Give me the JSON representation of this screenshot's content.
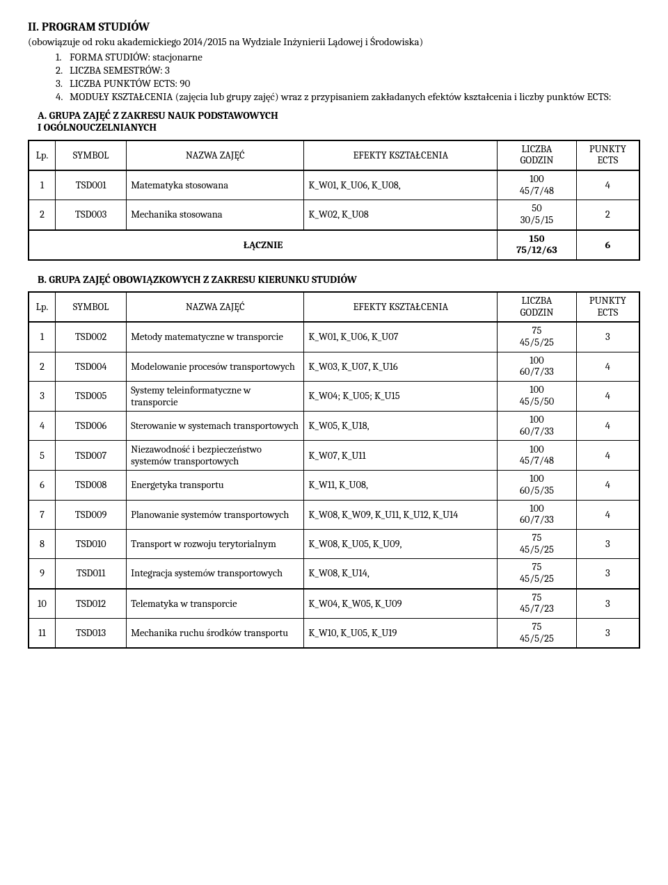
{
  "header": {
    "title": "II. PROGRAM STUDIÓW",
    "intro": "(obowiązuje od roku akademickiego 2014/2015 na Wydziale Inżynierii Lądowej i Środowiska)",
    "items": [
      "FORMA STUDIÓW: stacjonarne",
      "LICZBA SEMESTRÓW: 3",
      "LICZBA PUNKTÓW ECTS: 90",
      "MODUŁY KSZTAŁCENIA (zajęcia lub grupy zajęć) wraz z przypisaniem zakładanych efektów kształcenia i liczby punktów ECTS:"
    ]
  },
  "sectionA": {
    "heading": "A. GRUPA ZAJĘĆ  Z ZAKRESU NAUK PODSTAWOWYCH\n     I OGÓLNOUCZELNIANYCH",
    "columns": [
      "Lp.",
      "SYMBOL",
      "NAZWA ZAJĘĆ",
      "EFEKTY KSZTAŁCENIA",
      "LICZBA\nGODZIN",
      "PUNKTY\nECTS"
    ],
    "rows": [
      {
        "lp": "1",
        "sym": "TSD001",
        "name": "Matematyka stosowana",
        "eff": "K_W01, K_U06, K_U08,",
        "licz": "100\n45/7/48",
        "pts": "4"
      },
      {
        "lp": "2",
        "sym": "TSD003",
        "name": "Mechanika stosowana",
        "eff": "K_W02, K_U08",
        "licz": "50\n30/5/15",
        "pts": "2"
      }
    ],
    "sum": {
      "label": "ŁĄCZNIE",
      "licz": "150\n75/12/63",
      "pts": "6"
    }
  },
  "sectionB": {
    "heading": "B. GRUPA ZAJĘĆ  OBOWIĄZKOWYCH Z ZAKRESU KIERUNKU STUDIÓW",
    "columns": [
      "Lp.",
      "SYMBOL",
      "NAZWA ZAJĘĆ",
      "EFEKTY KSZTAŁCENIA",
      "LICZBA\nGODZIN",
      "PUNKTY\nECTS"
    ],
    "rows": [
      {
        "lp": "1",
        "sym": "TSD002",
        "name": "Metody matematyczne w transporcie",
        "eff": "K_W01, K_U06, K_U07",
        "licz": "75\n45/5/25",
        "pts": "3"
      },
      {
        "lp": "2",
        "sym": "TSD004",
        "name": "Modelowanie procesów transportowych",
        "eff": "K_W03, K_U07, K_U16",
        "licz": "100\n60/7/33",
        "pts": "4"
      },
      {
        "lp": "3",
        "sym": "TSD005",
        "name": "Systemy teleinformatyczne w transporcie",
        "eff": "K_W04; K_U05; K_U15",
        "licz": "100\n45/5/50",
        "pts": "4"
      },
      {
        "lp": "4",
        "sym": "TSD006",
        "name": "Sterowanie  w systemach transportowych",
        "eff": "K_W05, K_U18,",
        "licz": "100\n60/7/33",
        "pts": "4"
      },
      {
        "lp": "5",
        "sym": "TSD007",
        "name": "Niezawodność i bezpieczeństwo systemów transportowych",
        "eff": "K_W07, K_U11",
        "licz": "100\n45/7/48",
        "pts": "4"
      },
      {
        "lp": "6",
        "sym": "TSD008",
        "name": "Energetyka transportu",
        "eff": "K_W11, K_U08,",
        "licz": "100\n60/5/35",
        "pts": "4"
      },
      {
        "lp": "7",
        "sym": "TSD009",
        "name": "Planowanie systemów transportowych",
        "eff": "K_W08, K_W09, K_U11, K_U12, K_U14",
        "licz": "100\n60/7/33",
        "pts": "4"
      },
      {
        "lp": "8",
        "sym": "TSD010",
        "name": "Transport w rozwoju terytorialnym",
        "eff": "K_W08, K_U05, K_U09,",
        "licz": "75\n45/5/25",
        "pts": "3"
      },
      {
        "lp": "9",
        "sym": "TSD011",
        "name": "Integracja systemów transportowych",
        "eff": "K_W08, K_U14,",
        "licz": "75\n45/5/25",
        "pts": "3"
      },
      {
        "lp": "10",
        "sym": "TSD012",
        "name": "Telematyka w transporcie",
        "eff": "K_W04, K_W05, K_U09",
        "licz": "75\n45/7/23",
        "pts": "3"
      },
      {
        "lp": "11",
        "sym": "TSD013",
        "name": "Mechanika ruchu środków transportu",
        "eff": "K_W10, K_U05, K_U19",
        "licz": "75\n45/5/25",
        "pts": "3"
      }
    ]
  }
}
